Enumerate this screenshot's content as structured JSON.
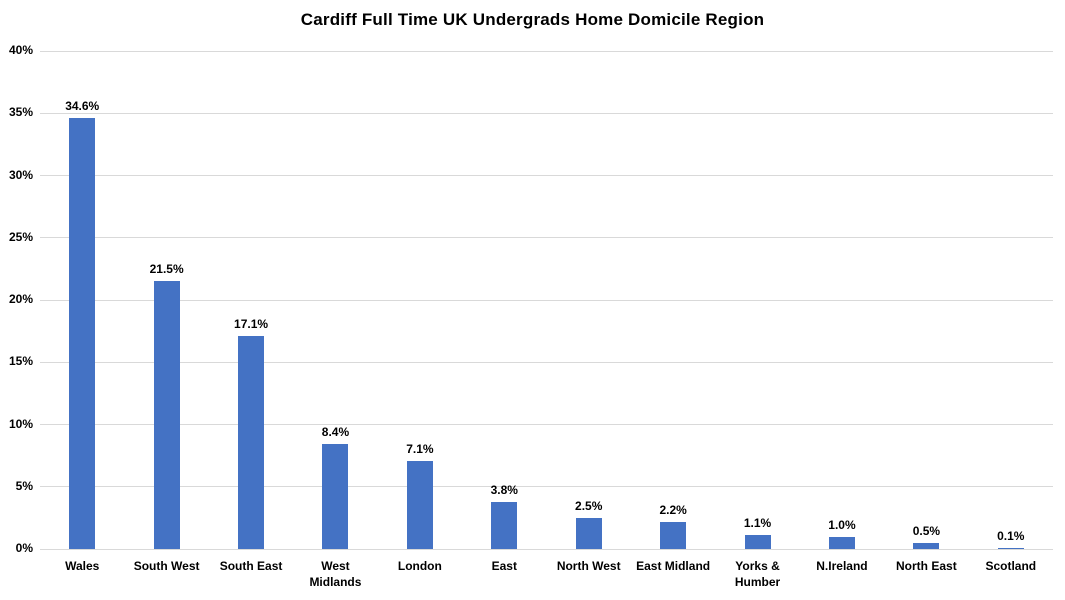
{
  "chart_data": {
    "type": "bar",
    "title": "Cardiff Full Time UK Undergrads Home Domicile Region",
    "categories": [
      "Wales",
      "South West",
      "South East",
      "West Midlands",
      "London",
      "East",
      "North West",
      "East Midland",
      "Yorks & Humber",
      "N.Ireland",
      "North East",
      "Scotland"
    ],
    "values": [
      34.6,
      21.5,
      17.1,
      8.4,
      7.1,
      3.8,
      2.5,
      2.2,
      1.1,
      1.0,
      0.5,
      0.1
    ],
    "value_labels": [
      "34.6%",
      "21.5%",
      "17.1%",
      "8.4%",
      "7.1%",
      "3.8%",
      "2.5%",
      "2.2%",
      "1.1%",
      "1.0%",
      "0.5%",
      "0.1%"
    ],
    "xlabel": "",
    "ylabel": "",
    "ylim": [
      0,
      40
    ],
    "y_tick_step": 5,
    "y_tick_labels": [
      "0%",
      "5%",
      "10%",
      "15%",
      "20%",
      "25%",
      "30%",
      "35%",
      "40%"
    ],
    "grid": true,
    "legend": false,
    "bar_color": "#4472C4",
    "gridline_color": "#D9D9D9",
    "background_color": "#FFFFFF"
  }
}
